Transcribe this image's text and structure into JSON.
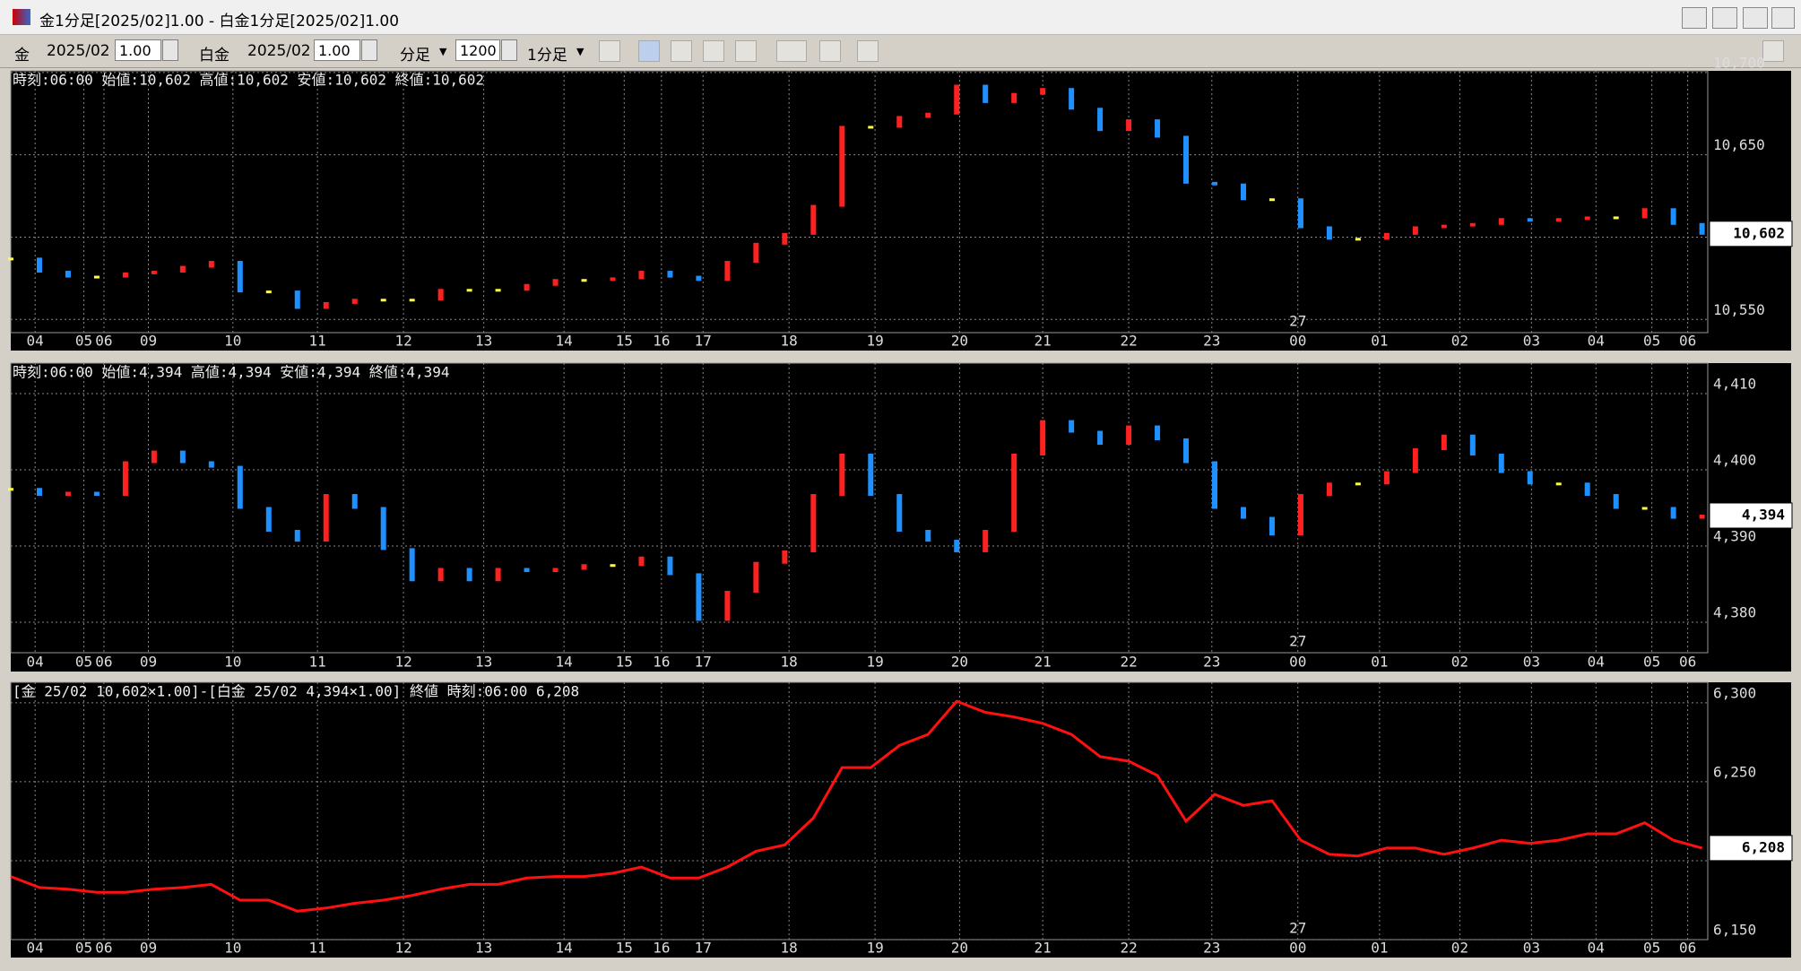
{
  "window": {
    "title": "金1分足[2025/02]1.00 - 白金1分足[2025/02]1.00"
  },
  "toolbar": {
    "symbol1": "金",
    "month1": "2025/02",
    "mult1": "1.00",
    "symbol2": "白金",
    "month2": "2025/02",
    "mult2": "1.00",
    "bar_unit": "分足",
    "bar_count": "1200",
    "period": "1分足"
  },
  "chart_data": [
    {
      "type": "tick",
      "header": "時刻:06:00 始値:10,602 高値:10,602 安値:10,602 終値:10,602",
      "up_color": "#ff2020",
      "down_color": "#1e90ff",
      "flat_color": "#ffff40",
      "x": [
        0,
        20,
        40,
        60,
        80,
        100,
        120,
        140,
        160,
        180,
        200,
        220,
        240,
        260,
        280,
        300,
        320,
        340,
        360,
        380,
        400,
        420,
        440,
        460,
        480,
        500,
        520,
        540,
        560,
        580,
        600,
        620,
        640,
        660,
        680,
        700,
        720,
        740,
        760,
        780,
        800,
        820,
        840,
        860,
        880,
        900,
        920,
        940,
        960,
        980,
        1000,
        1020,
        1040,
        1060,
        1080,
        1100,
        1120,
        1140,
        1160,
        1180
      ],
      "values": [
        10587,
        10579,
        10576,
        10576,
        10578,
        10579,
        10582,
        10585,
        10567,
        10567,
        10557,
        10560,
        10562,
        10562,
        10562,
        10568,
        10568,
        10568,
        10571,
        10574,
        10574,
        10575,
        10579,
        10576,
        10574,
        10585,
        10596,
        10602,
        10619,
        10667,
        10667,
        10673,
        10675,
        10692,
        10682,
        10687,
        10690,
        10678,
        10665,
        10671,
        10661,
        10633,
        10632,
        10623,
        10623,
        10606,
        10599,
        10599,
        10602,
        10606,
        10607,
        10608,
        10611,
        10610,
        10611,
        10612,
        10612,
        10617,
        10608,
        10602
      ],
      "xlim": [
        0,
        1184
      ],
      "xticks": [
        {
          "value": 17,
          "label": "04"
        },
        {
          "value": 51,
          "label": "05"
        },
        {
          "value": 65,
          "label": "06"
        },
        {
          "value": 96,
          "label": "09"
        },
        {
          "value": 155,
          "label": "10"
        },
        {
          "value": 214,
          "label": "11"
        },
        {
          "value": 274,
          "label": "12"
        },
        {
          "value": 330,
          "label": "13"
        },
        {
          "value": 386,
          "label": "14"
        },
        {
          "value": 428,
          "label": "15"
        },
        {
          "value": 454,
          "label": "16"
        },
        {
          "value": 483,
          "label": "17"
        },
        {
          "value": 543,
          "label": "18"
        },
        {
          "value": 603,
          "label": "19"
        },
        {
          "value": 662,
          "label": "20"
        },
        {
          "value": 720,
          "label": "21"
        },
        {
          "value": 780,
          "label": "22"
        },
        {
          "value": 838,
          "label": "23"
        },
        {
          "value": 898,
          "label": "00"
        },
        {
          "value": 955,
          "label": "01"
        },
        {
          "value": 1011,
          "label": "02"
        },
        {
          "value": 1061,
          "label": "03"
        },
        {
          "value": 1106,
          "label": "04"
        },
        {
          "value": 1145,
          "label": "05"
        },
        {
          "value": 1170,
          "label": "06"
        }
      ],
      "date_marker": {
        "value": 898,
        "label": "27"
      },
      "ylim": [
        10542,
        10701
      ],
      "yticks": [
        {
          "value": 10550,
          "label": "10,550"
        },
        {
          "value": 10600,
          "label": "10,600"
        },
        {
          "value": 10650,
          "label": "10,650"
        },
        {
          "value": 10700,
          "label": "10,700"
        }
      ],
      "current": {
        "value": 10602,
        "label": "10,602"
      }
    },
    {
      "type": "tick",
      "header": "時刻:06:00 始値:4,394 高値:4,394 安値:4,394 終値:4,394",
      "up_color": "#ff2020",
      "down_color": "#1e90ff",
      "flat_color": "#ffff40",
      "x": [
        0,
        20,
        40,
        60,
        80,
        100,
        120,
        140,
        160,
        180,
        200,
        220,
        240,
        260,
        280,
        300,
        320,
        340,
        360,
        380,
        400,
        420,
        440,
        460,
        480,
        500,
        520,
        540,
        560,
        580,
        600,
        620,
        640,
        660,
        680,
        700,
        720,
        740,
        760,
        780,
        800,
        820,
        840,
        860,
        880,
        900,
        920,
        940,
        960,
        980,
        1000,
        1020,
        1040,
        1060,
        1080,
        1100,
        1120,
        1140,
        1160,
        1180
      ],
      "values": [
        4397.5,
        4396.7,
        4397,
        4396.7,
        4401,
        4402.4,
        4401,
        4400.4,
        4395,
        4392,
        4390.7,
        4396.7,
        4395,
        4389.6,
        4385.5,
        4387,
        4385.5,
        4387,
        4386.7,
        4387,
        4387.5,
        4387.5,
        4388.5,
        4386.3,
        4380.3,
        4384,
        4387.8,
        4389.3,
        4396.7,
        4402,
        4396.7,
        4392,
        4390.7,
        4389.3,
        4392,
        4402,
        4406.4,
        4405,
        4403.4,
        4405.7,
        4404,
        4401,
        4395,
        4393.7,
        4391.5,
        4396.7,
        4398.2,
        4398.2,
        4399.7,
        4402.7,
        4404.5,
        4402,
        4399.7,
        4398.2,
        4398.2,
        4396.7,
        4395,
        4395,
        4393.7,
        4394
      ],
      "xlim": [
        0,
        1184
      ],
      "xticks": [
        {
          "value": 17,
          "label": "04"
        },
        {
          "value": 51,
          "label": "05"
        },
        {
          "value": 65,
          "label": "06"
        },
        {
          "value": 96,
          "label": "09"
        },
        {
          "value": 155,
          "label": "10"
        },
        {
          "value": 214,
          "label": "11"
        },
        {
          "value": 274,
          "label": "12"
        },
        {
          "value": 330,
          "label": "13"
        },
        {
          "value": 386,
          "label": "14"
        },
        {
          "value": 428,
          "label": "15"
        },
        {
          "value": 454,
          "label": "16"
        },
        {
          "value": 483,
          "label": "17"
        },
        {
          "value": 543,
          "label": "18"
        },
        {
          "value": 603,
          "label": "19"
        },
        {
          "value": 662,
          "label": "20"
        },
        {
          "value": 720,
          "label": "21"
        },
        {
          "value": 780,
          "label": "22"
        },
        {
          "value": 838,
          "label": "23"
        },
        {
          "value": 898,
          "label": "00"
        },
        {
          "value": 955,
          "label": "01"
        },
        {
          "value": 1011,
          "label": "02"
        },
        {
          "value": 1061,
          "label": "03"
        },
        {
          "value": 1106,
          "label": "04"
        },
        {
          "value": 1145,
          "label": "05"
        },
        {
          "value": 1170,
          "label": "06"
        }
      ],
      "date_marker": {
        "value": 898,
        "label": "27"
      },
      "ylim": [
        4376,
        4414
      ],
      "yticks": [
        {
          "value": 4380,
          "label": "4,380"
        },
        {
          "value": 4390,
          "label": "4,390"
        },
        {
          "value": 4400,
          "label": "4,400"
        },
        {
          "value": 4410,
          "label": "4,410"
        }
      ],
      "current": {
        "value": 4394,
        "label": "4,394"
      }
    },
    {
      "type": "line",
      "header": "[金 25/02 10,602×1.00]-[白金 25/02 4,394×1.00] 終値 時刻:06:00 6,208",
      "color": "#ff1010",
      "x": [
        0,
        20,
        40,
        60,
        80,
        100,
        120,
        140,
        160,
        180,
        200,
        220,
        240,
        260,
        280,
        300,
        320,
        340,
        360,
        380,
        400,
        420,
        440,
        460,
        480,
        500,
        520,
        540,
        560,
        580,
        600,
        620,
        640,
        660,
        680,
        700,
        720,
        740,
        760,
        780,
        800,
        820,
        840,
        860,
        880,
        900,
        920,
        940,
        960,
        980,
        1000,
        1020,
        1040,
        1060,
        1080,
        1100,
        1120,
        1140,
        1160,
        1180
      ],
      "values": [
        6190,
        6183,
        6182,
        6180,
        6180,
        6182,
        6183,
        6185,
        6175,
        6175,
        6168,
        6170,
        6173,
        6175,
        6178,
        6182,
        6185,
        6185,
        6189,
        6190,
        6190,
        6192,
        6196,
        6189,
        6189,
        6196,
        6206,
        6210,
        6227,
        6259,
        6259,
        6273,
        6280,
        6301,
        6294,
        6291,
        6287,
        6280,
        6266,
        6263,
        6254,
        6225,
        6242,
        6235,
        6238,
        6213,
        6204,
        6203,
        6208,
        6208,
        6204,
        6208,
        6213,
        6211,
        6213,
        6217,
        6217,
        6224,
        6213,
        6208
      ],
      "xlim": [
        0,
        1184
      ],
      "xticks": [
        {
          "value": 17,
          "label": "04"
        },
        {
          "value": 51,
          "label": "05"
        },
        {
          "value": 65,
          "label": "06"
        },
        {
          "value": 96,
          "label": "09"
        },
        {
          "value": 155,
          "label": "10"
        },
        {
          "value": 214,
          "label": "11"
        },
        {
          "value": 274,
          "label": "12"
        },
        {
          "value": 330,
          "label": "13"
        },
        {
          "value": 386,
          "label": "14"
        },
        {
          "value": 428,
          "label": "15"
        },
        {
          "value": 454,
          "label": "16"
        },
        {
          "value": 483,
          "label": "17"
        },
        {
          "value": 543,
          "label": "18"
        },
        {
          "value": 603,
          "label": "19"
        },
        {
          "value": 662,
          "label": "20"
        },
        {
          "value": 720,
          "label": "21"
        },
        {
          "value": 780,
          "label": "22"
        },
        {
          "value": 838,
          "label": "23"
        },
        {
          "value": 898,
          "label": "00"
        },
        {
          "value": 955,
          "label": "01"
        },
        {
          "value": 1011,
          "label": "02"
        },
        {
          "value": 1061,
          "label": "03"
        },
        {
          "value": 1106,
          "label": "04"
        },
        {
          "value": 1145,
          "label": "05"
        },
        {
          "value": 1170,
          "label": "06"
        }
      ],
      "date_marker": {
        "value": 898,
        "label": "27"
      },
      "ylim": [
        6150,
        6313
      ],
      "yticks": [
        {
          "value": 6150,
          "label": "6,150"
        },
        {
          "value": 6200,
          "label": "6,200"
        },
        {
          "value": 6250,
          "label": "6,250"
        },
        {
          "value": 6300,
          "label": "6,300"
        }
      ],
      "current": {
        "value": 6208,
        "label": "6,208"
      }
    }
  ]
}
